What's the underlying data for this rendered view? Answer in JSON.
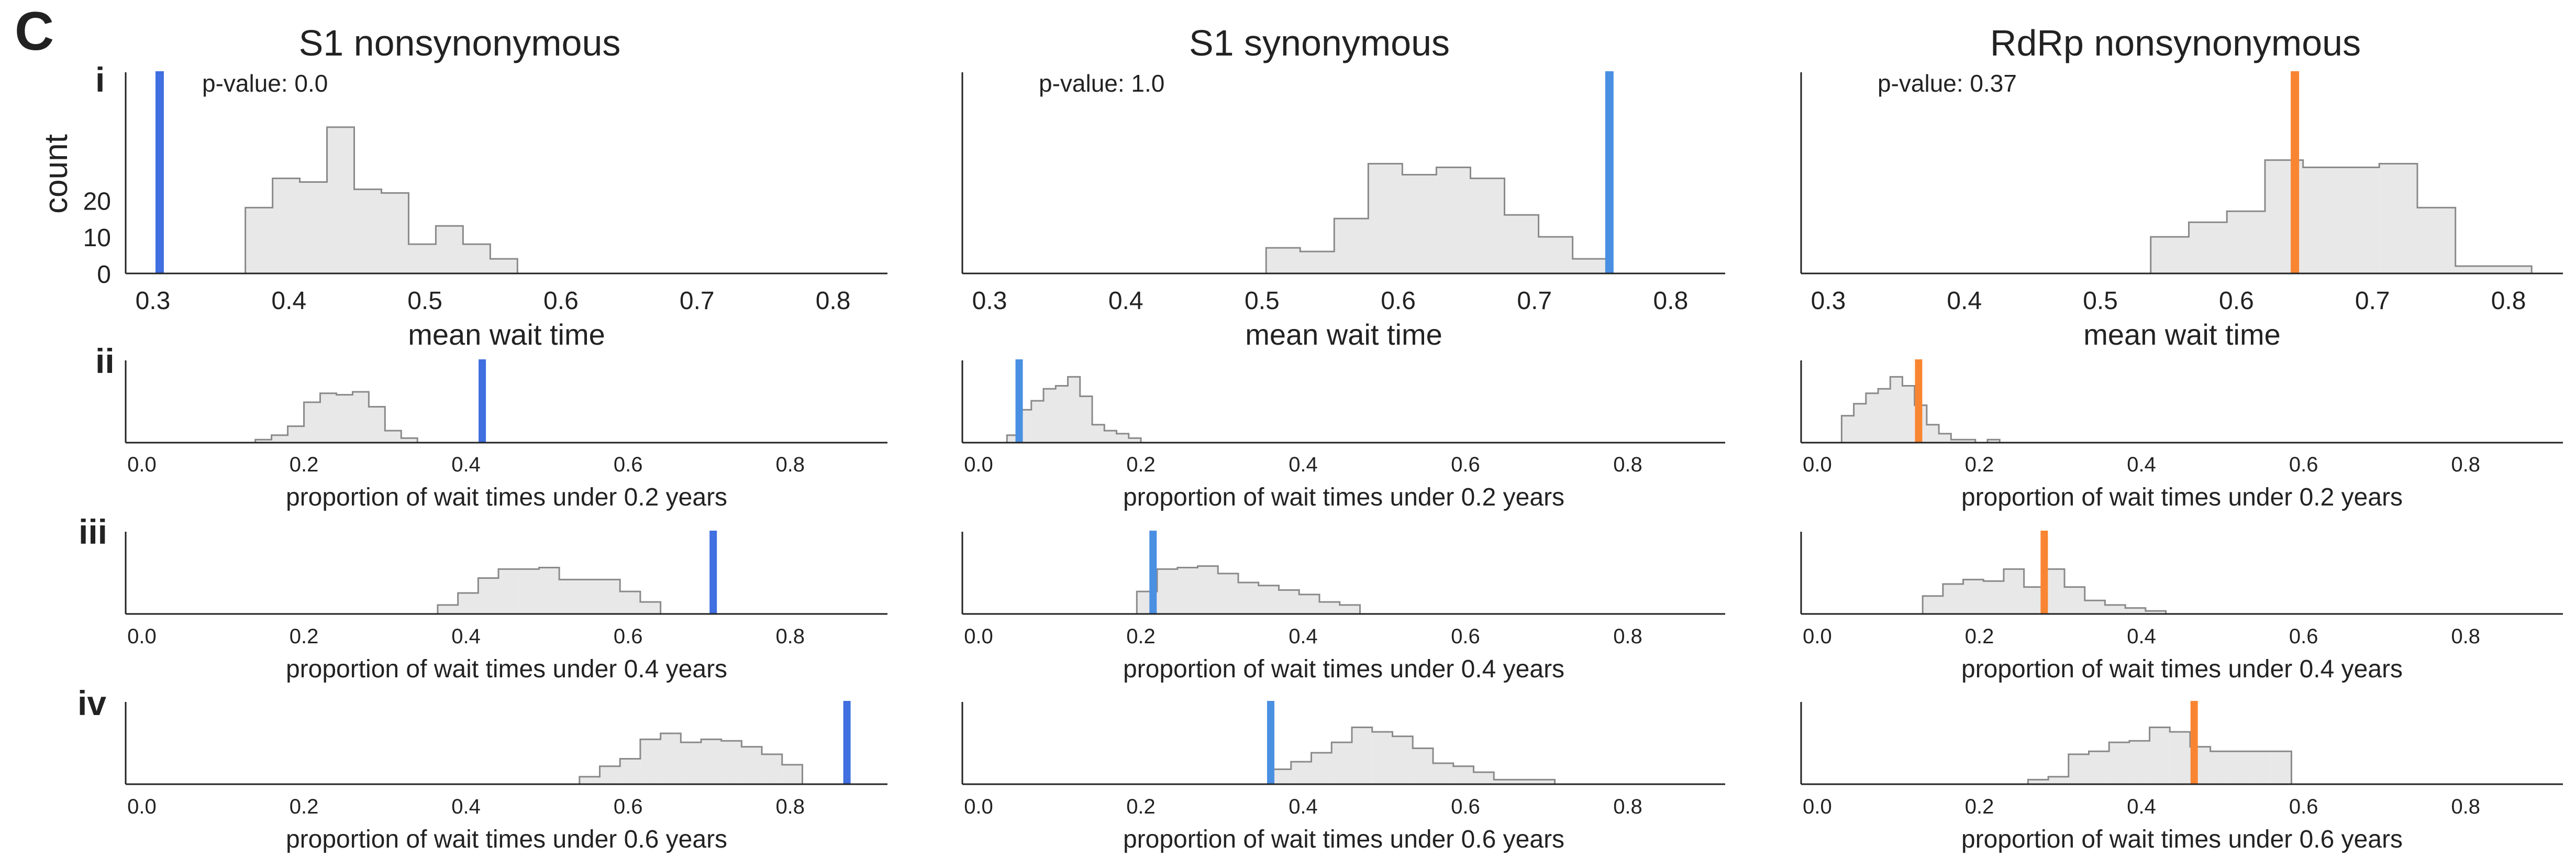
{
  "panel_letter": "C",
  "row_labels": [
    "i",
    "ii",
    "iii",
    "iv"
  ],
  "column_titles": [
    "S1 nonsynonymous",
    "S1 synonymous",
    "RdRp nonsynonymous"
  ],
  "y_axis_label": "count",
  "colors": {
    "histogram_fill": "#e8e8e8",
    "histogram_stroke": "#8a8a8a",
    "observed_s1_nonsyn": "#3f6fe0",
    "observed_s1_syn": "#4a90e2",
    "observed_rdrp": "#f98532",
    "axis": "#222222"
  },
  "chart_data": [
    {
      "type": "histogram",
      "row": "i",
      "column": "S1 nonsynonymous",
      "xlabel": "mean wait time",
      "ylabel": "count",
      "xlim": [
        0.28,
        0.84
      ],
      "ylim": [
        0,
        55
      ],
      "xticks": [
        0.3,
        0.4,
        0.5,
        0.6,
        0.7,
        0.8
      ],
      "yticks": [
        0,
        10,
        20
      ],
      "annotation": "p-value: 0.0",
      "observed": 0.305,
      "bin_edges": [
        0.368,
        0.388,
        0.408,
        0.428,
        0.448,
        0.468,
        0.488,
        0.508,
        0.528,
        0.548,
        0.568,
        0.588
      ],
      "counts": [
        18,
        26,
        25,
        40,
        23,
        22,
        8,
        13,
        8,
        4,
        0
      ]
    },
    {
      "type": "histogram",
      "row": "i",
      "column": "S1 synonymous",
      "xlabel": "mean wait time",
      "xlim": [
        0.28,
        0.84
      ],
      "ylim": [
        0,
        55
      ],
      "xticks": [
        0.3,
        0.4,
        0.5,
        0.6,
        0.7,
        0.8
      ],
      "annotation": "p-value: 1.0",
      "observed": 0.755,
      "bin_edges": [
        0.503,
        0.528,
        0.553,
        0.578,
        0.603,
        0.628,
        0.653,
        0.678,
        0.703,
        0.728,
        0.753
      ],
      "counts": [
        7,
        6,
        15,
        30,
        27,
        29,
        26,
        16,
        10,
        4
      ]
    },
    {
      "type": "histogram",
      "row": "i",
      "column": "RdRp nonsynonymous",
      "xlabel": "mean wait time",
      "xlim": [
        0.28,
        0.84
      ],
      "ylim": [
        0,
        55
      ],
      "xticks": [
        0.3,
        0.4,
        0.5,
        0.6,
        0.7,
        0.8
      ],
      "annotation": "p-value: 0.37",
      "observed": 0.643,
      "bin_edges": [
        0.537,
        0.565,
        0.593,
        0.621,
        0.649,
        0.677,
        0.705,
        0.733,
        0.761,
        0.789,
        0.817
      ],
      "counts": [
        10,
        14,
        17,
        31,
        29,
        29,
        30,
        18,
        2,
        2
      ]
    },
    {
      "type": "histogram",
      "row": "ii",
      "column": "S1 nonsynonymous",
      "xlabel": "proportion of wait times under 0.2 years",
      "xlim": [
        -0.02,
        0.92
      ],
      "ylim": [
        0,
        55
      ],
      "xticks": [
        0.0,
        0.2,
        0.4,
        0.6,
        0.8
      ],
      "observed": 0.42,
      "bin_edges": [
        0.14,
        0.16,
        0.18,
        0.2,
        0.22,
        0.24,
        0.26,
        0.28,
        0.3,
        0.32,
        0.34,
        0.36
      ],
      "counts": [
        2,
        5,
        11,
        27,
        33,
        32,
        34,
        24,
        8,
        3,
        0
      ]
    },
    {
      "type": "histogram",
      "row": "ii",
      "column": "S1 synonymous",
      "xlabel": "proportion of wait times under 0.2 years",
      "xlim": [
        -0.02,
        0.92
      ],
      "ylim": [
        0,
        55
      ],
      "xticks": [
        0.0,
        0.2,
        0.4,
        0.6,
        0.8
      ],
      "observed": 0.05,
      "bin_edges": [
        0.035,
        0.05,
        0.065,
        0.08,
        0.095,
        0.11,
        0.125,
        0.14,
        0.155,
        0.17,
        0.185,
        0.2
      ],
      "counts": [
        5,
        22,
        28,
        36,
        38,
        44,
        31,
        12,
        8,
        6,
        3
      ]
    },
    {
      "type": "histogram",
      "row": "ii",
      "column": "RdRp nonsynonymous",
      "xlabel": "proportion of wait times under 0.2 years",
      "xlim": [
        -0.02,
        0.92
      ],
      "ylim": [
        0,
        55
      ],
      "xticks": [
        0.0,
        0.2,
        0.4,
        0.6,
        0.8
      ],
      "observed": 0.125,
      "bin_edges": [
        0.03,
        0.045,
        0.06,
        0.075,
        0.09,
        0.105,
        0.12,
        0.135,
        0.15,
        0.165,
        0.18,
        0.195,
        0.21,
        0.225,
        0.24
      ],
      "counts": [
        18,
        26,
        33,
        36,
        44,
        38,
        25,
        12,
        6,
        2,
        2,
        0,
        2,
        0
      ]
    },
    {
      "type": "histogram",
      "row": "iii",
      "column": "S1 nonsynonymous",
      "xlabel": "proportion of wait times under 0.4 years",
      "xlim": [
        -0.02,
        0.92
      ],
      "ylim": [
        0,
        55
      ],
      "xticks": [
        0.0,
        0.2,
        0.4,
        0.6,
        0.8
      ],
      "observed": 0.705,
      "bin_edges": [
        0.365,
        0.39,
        0.415,
        0.44,
        0.465,
        0.49,
        0.515,
        0.54,
        0.565,
        0.59,
        0.615,
        0.64,
        0.665
      ],
      "counts": [
        6,
        14,
        24,
        30,
        30,
        31,
        23,
        23,
        23,
        15,
        8,
        0
      ]
    },
    {
      "type": "histogram",
      "row": "iii",
      "column": "S1 synonymous",
      "xlabel": "proportion of wait times under 0.4 years",
      "xlim": [
        -0.02,
        0.92
      ],
      "ylim": [
        0,
        55
      ],
      "xticks": [
        0.0,
        0.2,
        0.4,
        0.6,
        0.8
      ],
      "observed": 0.215,
      "bin_edges": [
        0.195,
        0.22,
        0.245,
        0.27,
        0.295,
        0.32,
        0.345,
        0.37,
        0.395,
        0.42,
        0.445,
        0.47
      ],
      "counts": [
        15,
        30,
        31,
        32,
        27,
        21,
        19,
        16,
        13,
        8,
        6
      ]
    },
    {
      "type": "histogram",
      "row": "iii",
      "column": "RdRp nonsynonymous",
      "xlabel": "proportion of wait times under 0.4 years",
      "xlim": [
        -0.02,
        0.92
      ],
      "ylim": [
        0,
        55
      ],
      "xticks": [
        0.0,
        0.2,
        0.4,
        0.6,
        0.8
      ],
      "observed": 0.28,
      "bin_edges": [
        0.13,
        0.155,
        0.18,
        0.205,
        0.23,
        0.255,
        0.28,
        0.305,
        0.33,
        0.355,
        0.38,
        0.405,
        0.43,
        0.455
      ],
      "counts": [
        12,
        20,
        23,
        22,
        30,
        18,
        30,
        18,
        9,
        6,
        4,
        2,
        0
      ]
    },
    {
      "type": "histogram",
      "row": "iv",
      "column": "S1 nonsynonymous",
      "xlabel": "proportion of wait times under 0.6 years",
      "xlim": [
        -0.02,
        0.92
      ],
      "ylim": [
        0,
        55
      ],
      "xticks": [
        0.0,
        0.2,
        0.4,
        0.6,
        0.8
      ],
      "observed": 0.87,
      "bin_edges": [
        0.54,
        0.565,
        0.59,
        0.615,
        0.64,
        0.665,
        0.69,
        0.715,
        0.74,
        0.765,
        0.79,
        0.815,
        0.84
      ],
      "counts": [
        5,
        12,
        17,
        30,
        34,
        28,
        30,
        29,
        25,
        20,
        13,
        0
      ]
    },
    {
      "type": "histogram",
      "row": "iv",
      "column": "S1 synonymous",
      "xlabel": "proportion of wait times under 0.6 years",
      "xlim": [
        -0.02,
        0.92
      ],
      "ylim": [
        0,
        55
      ],
      "xticks": [
        0.0,
        0.2,
        0.4,
        0.6,
        0.8
      ],
      "observed": 0.36,
      "bin_edges": [
        0.36,
        0.385,
        0.41,
        0.435,
        0.46,
        0.485,
        0.51,
        0.535,
        0.56,
        0.585,
        0.61,
        0.635,
        0.66,
        0.685,
        0.71
      ],
      "counts": [
        10,
        15,
        21,
        28,
        38,
        35,
        32,
        24,
        14,
        12,
        8,
        3,
        3,
        3
      ]
    },
    {
      "type": "histogram",
      "row": "iv",
      "column": "RdRp nonsynonymous",
      "xlabel": "proportion of wait times under 0.6 years",
      "xlim": [
        -0.02,
        0.92
      ],
      "ylim": [
        0,
        55
      ],
      "xticks": [
        0.0,
        0.2,
        0.4,
        0.6,
        0.8
      ],
      "observed": 0.465,
      "bin_edges": [
        0.26,
        0.285,
        0.31,
        0.335,
        0.36,
        0.385,
        0.41,
        0.435,
        0.46,
        0.485,
        0.51,
        0.535,
        0.56,
        0.585,
        0.61
      ],
      "counts": [
        3,
        5,
        20,
        22,
        28,
        29,
        38,
        35,
        25,
        22,
        22,
        22,
        22,
        0
      ]
    }
  ]
}
